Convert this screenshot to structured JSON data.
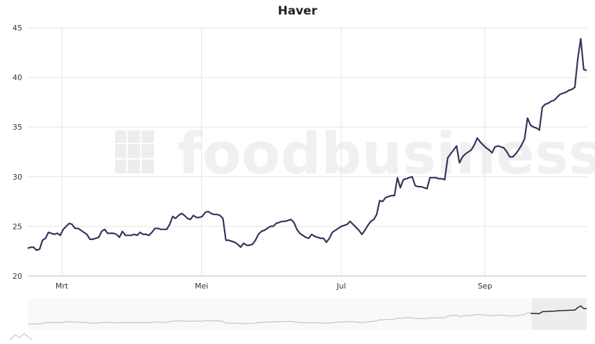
{
  "chart_data": {
    "type": "line",
    "title": "Haver",
    "xlabel": "",
    "ylabel": "",
    "watermark": "foodbusiness",
    "ylim": [
      20,
      45
    ],
    "y_ticks": [
      "20",
      "25",
      "30",
      "35",
      "40",
      "45"
    ],
    "x_ticks": [
      "Mrt",
      "Mei",
      "Jul",
      "Sep"
    ],
    "grid": true,
    "legend": "none",
    "line_color": "#3b2d5c",
    "navigator": true,
    "series": [
      {
        "values": [
          22.8,
          22.9,
          22.9,
          22.6,
          22.7,
          23.6,
          23.8,
          24.4,
          24.3,
          24.2,
          24.3,
          24.1,
          24.7,
          25.0,
          25.3,
          25.2,
          24.8,
          24.8,
          24.6,
          24.4,
          24.2,
          23.7,
          23.7,
          23.8,
          23.9,
          24.5,
          24.7,
          24.3,
          24.3,
          24.3,
          24.2,
          23.9,
          24.5,
          24.1,
          24.1,
          24.1,
          24.2,
          24.1,
          24.4,
          24.2,
          24.2,
          24.1,
          24.4,
          24.8,
          24.8,
          24.7,
          24.7,
          24.7,
          25.2,
          26.0,
          25.8,
          26.1,
          26.3,
          26.1,
          25.8,
          25.7,
          26.1,
          25.9,
          25.9,
          26.0,
          26.4,
          26.5,
          26.3,
          26.2,
          26.2,
          26.1,
          25.8,
          23.6,
          23.6,
          23.5,
          23.4,
          23.2,
          22.9,
          23.3,
          23.1,
          23.1,
          23.2,
          23.6,
          24.2,
          24.5,
          24.6,
          24.8,
          25.0,
          25.0,
          25.3,
          25.4,
          25.5,
          25.5,
          25.6,
          25.7,
          25.4,
          24.7,
          24.3,
          24.1,
          23.9,
          23.8,
          24.2,
          24.0,
          23.9,
          23.8,
          23.8,
          23.4,
          23.8,
          24.4,
          24.6,
          24.8,
          25.0,
          25.1,
          25.2,
          25.5,
          25.2,
          24.9,
          24.6,
          24.2,
          24.6,
          25.1,
          25.5,
          25.7,
          26.2,
          27.6,
          27.5,
          27.9,
          28.0,
          28.1,
          28.1,
          29.9,
          28.9,
          29.7,
          29.8,
          29.9,
          30.0,
          29.1,
          29.0,
          29.0,
          28.9,
          28.8,
          29.9,
          29.9,
          29.9,
          29.8,
          29.8,
          29.7,
          31.9,
          32.3,
          32.7,
          33.1,
          31.4,
          32.0,
          32.3,
          32.5,
          32.7,
          33.2,
          33.9,
          33.5,
          33.2,
          32.9,
          32.7,
          32.4,
          33.0,
          33.1,
          33.0,
          32.9,
          32.5,
          32.0,
          32.0,
          32.3,
          32.7,
          33.2,
          33.8,
          35.9,
          35.2,
          35.0,
          34.9,
          34.7,
          37.0,
          37.3,
          37.4,
          37.6,
          37.7,
          38.0,
          38.3,
          38.4,
          38.5,
          38.7,
          38.8,
          39.0,
          41.9,
          43.9,
          40.8,
          40.7
        ]
      }
    ]
  }
}
